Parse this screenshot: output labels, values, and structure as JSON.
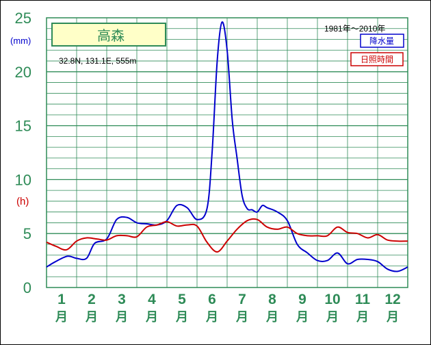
{
  "chart_data": {
    "type": "line",
    "station_name": "高森",
    "location": "32.8N,  131.1E,  555m",
    "period": "1981年〜2010年",
    "y_unit_left": "(mm)",
    "y_unit_right": "(h)",
    "ylim": [
      0,
      25
    ],
    "yticks": [
      "0",
      "5",
      "10",
      "15",
      "20",
      "25"
    ],
    "month_numbers": [
      "1",
      "2",
      "3",
      "4",
      "5",
      "6",
      "7",
      "8",
      "9",
      "10",
      "11",
      "12"
    ],
    "month_suffix": "月",
    "grid": true,
    "legend": [
      "降水量",
      "日照時間"
    ],
    "series": [
      {
        "name": "降水量",
        "color": "#0000cc",
        "x": [
          0,
          0.3,
          0.7,
          1.0,
          1.33,
          1.6,
          2.0,
          2.33,
          2.67,
          3.0,
          3.33,
          3.67,
          4.0,
          4.33,
          4.67,
          5.0,
          5.33,
          5.5,
          5.67,
          5.83,
          6.0,
          6.17,
          6.33,
          6.5,
          6.67,
          6.83,
          7.0,
          7.17,
          7.33,
          7.67,
          8.0,
          8.33,
          8.67,
          9.0,
          9.33,
          9.67,
          10.0,
          10.33,
          10.67,
          11.0,
          11.33,
          11.67,
          12.0
        ],
        "values": [
          1.9,
          2.4,
          2.9,
          2.7,
          2.7,
          4.1,
          4.5,
          6.3,
          6.5,
          6.0,
          5.9,
          5.8,
          6.2,
          7.6,
          7.4,
          6.3,
          7.3,
          12.5,
          21.0,
          24.6,
          22.0,
          15.5,
          12.0,
          8.5,
          7.3,
          7.2,
          7.0,
          7.6,
          7.4,
          7.0,
          6.2,
          4.0,
          3.2,
          2.5,
          2.5,
          3.2,
          2.2,
          2.6,
          2.6,
          2.4,
          1.7,
          1.5,
          1.9
        ]
      },
      {
        "name": "日照時間",
        "color": "#cc0000",
        "x": [
          0,
          0.33,
          0.67,
          1.0,
          1.33,
          1.67,
          2.0,
          2.33,
          2.67,
          3.0,
          3.33,
          3.67,
          4.0,
          4.33,
          4.67,
          5.0,
          5.33,
          5.67,
          6.0,
          6.33,
          6.67,
          7.0,
          7.33,
          7.67,
          8.0,
          8.33,
          8.67,
          9.0,
          9.33,
          9.67,
          10.0,
          10.33,
          10.67,
          11.0,
          11.33,
          11.67,
          12.0
        ],
        "values": [
          4.2,
          3.8,
          3.5,
          4.3,
          4.6,
          4.5,
          4.4,
          4.8,
          4.8,
          4.7,
          5.6,
          5.8,
          6.1,
          5.7,
          5.8,
          5.7,
          4.2,
          3.3,
          4.3,
          5.4,
          6.2,
          6.3,
          5.6,
          5.4,
          5.6,
          5.0,
          4.8,
          4.8,
          4.8,
          5.6,
          5.1,
          5.0,
          4.6,
          4.9,
          4.4,
          4.3,
          4.3
        ]
      }
    ]
  }
}
